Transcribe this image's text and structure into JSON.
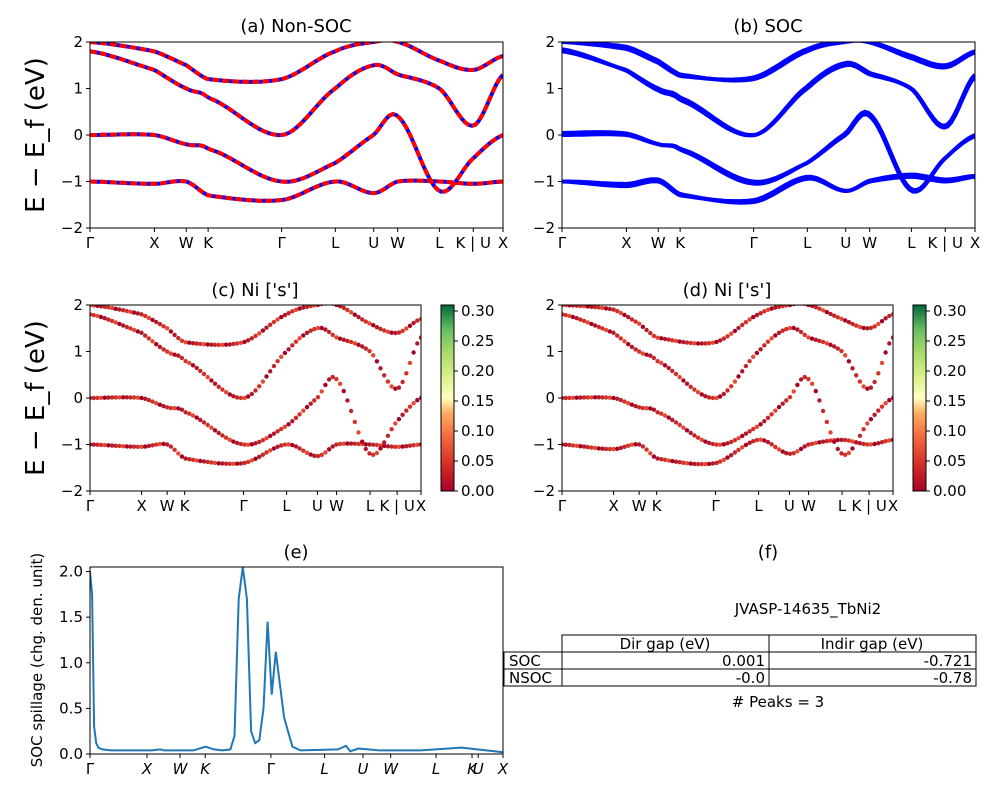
{
  "figure": {
    "ylabel_bands": "E − E_f (eV)",
    "kpath_labels": [
      "Γ",
      "X",
      "W",
      "K",
      "Γ",
      "L",
      "U",
      "W",
      "L",
      "K | U",
      "X"
    ],
    "kpath_labels_e": [
      "Γ",
      "X",
      "W",
      "K",
      "Γ",
      "L",
      "U",
      "W",
      "L",
      "K",
      "U",
      "X"
    ]
  },
  "chart_data": [
    {
      "id": "a",
      "type": "line",
      "title": "(a) Non-SOC",
      "ylabel": "E − E_f (eV)",
      "ylim": [
        -2,
        2
      ],
      "yticks": [
        -2,
        -1,
        0,
        1,
        2
      ],
      "xticks": [
        "Γ",
        "X",
        "W",
        "K",
        "Γ",
        "L",
        "U",
        "W",
        "L",
        "K | U",
        "X"
      ],
      "series_colors": [
        "#0000ff",
        "#ff0000"
      ],
      "line_style": "red dashed over blue solid (spin up/down)",
      "bands_at_kpoints": [
        [
          -1.0,
          -1.05,
          -1.0,
          -1.3,
          -1.4,
          -1.0,
          -1.25,
          -1.0,
          -1.0,
          -1.05,
          -1.0
        ],
        [
          0.0,
          0.0,
          -0.2,
          -0.3,
          -1.0,
          -0.6,
          0.0,
          0.4,
          -1.2,
          -0.5,
          0.0
        ],
        [
          1.8,
          1.4,
          1.0,
          0.8,
          0.0,
          1.0,
          1.5,
          1.3,
          1.0,
          0.2,
          1.3
        ],
        [
          2.0,
          1.8,
          1.5,
          1.2,
          1.2,
          1.8,
          2.0,
          2.0,
          1.6,
          1.4,
          1.7
        ]
      ]
    },
    {
      "id": "b",
      "type": "line",
      "title": "(b) SOC",
      "ylim": [
        -2,
        2
      ],
      "yticks": [
        -2,
        -1,
        0,
        1,
        2
      ],
      "xticks": [
        "Γ",
        "X",
        "W",
        "K",
        "Γ",
        "L",
        "U",
        "W",
        "L",
        "K | U",
        "X"
      ],
      "series_colors": [
        "#0000ff"
      ],
      "bands_at_kpoints": [
        [
          -1.0,
          -1.1,
          -1.0,
          -1.3,
          -1.4,
          -0.9,
          -1.2,
          -1.0,
          -0.9,
          -1.0,
          -0.9
        ],
        [
          0.0,
          0.0,
          -0.2,
          -0.3,
          -1.0,
          -0.6,
          0.0,
          0.4,
          -1.2,
          -0.5,
          0.0
        ],
        [
          1.8,
          1.4,
          1.0,
          0.8,
          0.0,
          1.0,
          1.5,
          1.3,
          1.0,
          0.2,
          1.3
        ],
        [
          2.0,
          1.9,
          1.6,
          1.3,
          1.2,
          1.8,
          2.0,
          2.0,
          1.7,
          1.5,
          1.8
        ]
      ]
    },
    {
      "id": "c",
      "type": "scatter",
      "title": "(c)  Ni ['s']",
      "ylabel": "E − E_f (eV)",
      "ylim": [
        -2,
        2
      ],
      "yticks": [
        -2,
        -1,
        0,
        1,
        2
      ],
      "xticks": [
        "Γ",
        "X",
        "W",
        "K",
        "Γ",
        "L",
        "U",
        "W",
        "L",
        "K | U",
        "X"
      ],
      "colorbar": {
        "min": 0.0,
        "max": 0.31,
        "ticks": [
          0.0,
          0.05,
          0.1,
          0.15,
          0.2,
          0.25,
          0.3
        ],
        "tick_labels": [
          "0.00",
          "0.05",
          "0.10",
          "0.15",
          "0.20",
          "0.25",
          "0.30"
        ],
        "colormap": "RdYlGn"
      },
      "bands_at_kpoints": [
        [
          -1.0,
          -1.05,
          -1.0,
          -1.3,
          -1.4,
          -1.0,
          -1.25,
          -1.0,
          -1.0,
          -1.05,
          -1.0
        ],
        [
          0.0,
          0.0,
          -0.2,
          -0.3,
          -1.0,
          -0.6,
          0.0,
          0.4,
          -1.2,
          -0.5,
          0.0
        ],
        [
          1.8,
          1.4,
          1.0,
          0.8,
          0.0,
          1.0,
          1.5,
          1.3,
          1.0,
          0.2,
          1.3
        ],
        [
          2.0,
          1.8,
          1.5,
          1.2,
          1.2,
          1.8,
          2.0,
          2.0,
          1.6,
          1.4,
          1.7
        ]
      ]
    },
    {
      "id": "d",
      "type": "scatter",
      "title": "(d) Ni ['s']",
      "ylim": [
        -2,
        2
      ],
      "yticks": [
        -2,
        -1,
        0,
        1,
        2
      ],
      "xticks": [
        "Γ",
        "X",
        "W",
        "K",
        "Γ",
        "L",
        "U",
        "W",
        "L",
        "K | U",
        "X"
      ],
      "colorbar": {
        "min": 0.0,
        "max": 0.31,
        "ticks": [
          0.0,
          0.05,
          0.1,
          0.15,
          0.2,
          0.25,
          0.3
        ],
        "tick_labels": [
          "0.00",
          "0.05",
          "0.10",
          "0.15",
          "0.20",
          "0.25",
          "0.30"
        ],
        "colormap": "RdYlGn"
      },
      "bands_at_kpoints": [
        [
          -1.0,
          -1.1,
          -1.0,
          -1.3,
          -1.4,
          -0.9,
          -1.2,
          -1.0,
          -0.9,
          -1.0,
          -0.9
        ],
        [
          0.0,
          0.0,
          -0.2,
          -0.3,
          -1.0,
          -0.6,
          0.0,
          0.4,
          -1.2,
          -0.5,
          0.0
        ],
        [
          1.8,
          1.4,
          1.0,
          0.8,
          0.0,
          1.0,
          1.5,
          1.3,
          1.0,
          0.2,
          1.3
        ],
        [
          2.0,
          1.9,
          1.6,
          1.3,
          1.2,
          1.8,
          2.0,
          2.0,
          1.7,
          1.5,
          1.8
        ]
      ]
    },
    {
      "id": "e",
      "type": "line",
      "title": "(e)",
      "ylabel": "SOC spillage (chg. den. unit)",
      "ylim": [
        0,
        2.05
      ],
      "yticks": [
        0.0,
        0.5,
        1.0,
        1.5,
        2.0
      ],
      "ytick_labels": [
        "0.0",
        "0.5",
        "1.0",
        "1.5",
        "2.0"
      ],
      "xticks": [
        "Γ",
        "X",
        "W",
        "K",
        "Γ",
        "L",
        "U",
        "W",
        "L",
        "K",
        "U",
        "X"
      ],
      "color": "#1f77b4",
      "x": [
        0,
        1,
        2,
        3,
        4,
        6,
        10,
        20,
        30,
        34,
        36,
        40,
        46,
        50,
        56,
        60,
        64,
        68,
        70,
        72,
        74,
        76,
        78,
        80,
        82,
        84,
        86,
        88,
        90,
        94,
        98,
        102,
        120,
        124,
        126,
        130,
        140,
        160,
        180,
        200
      ],
      "y": [
        2.0,
        1.75,
        0.3,
        0.12,
        0.07,
        0.05,
        0.04,
        0.04,
        0.04,
        0.05,
        0.04,
        0.04,
        0.04,
        0.04,
        0.08,
        0.05,
        0.04,
        0.05,
        0.2,
        1.7,
        2.05,
        1.7,
        0.25,
        0.12,
        0.15,
        0.5,
        1.45,
        0.65,
        1.12,
        0.4,
        0.08,
        0.04,
        0.05,
        0.09,
        0.03,
        0.06,
        0.04,
        0.04,
        0.07,
        0.02
      ]
    },
    {
      "id": "f",
      "type": "table",
      "title": "(f)",
      "caption": "JVASP-14635_TbNi2",
      "columns": [
        "Dir gap (eV)",
        "Indir gap (eV)"
      ],
      "rows": [
        {
          "label": "SOC",
          "values": [
            "0.001",
            "-0.721"
          ]
        },
        {
          "label": "NSOC",
          "values": [
            "-0.0",
            "-0.78"
          ]
        }
      ],
      "footer": "# Peaks = 3"
    }
  ]
}
